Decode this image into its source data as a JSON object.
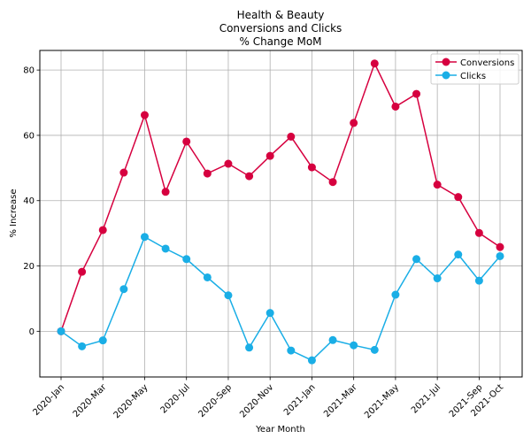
{
  "chart_data": {
    "type": "line",
    "title_lines": [
      "Health & Beauty",
      "Conversions and Clicks",
      "% Change MoM"
    ],
    "xlabel": "Year Month",
    "ylabel": "% Increase",
    "x": [
      "2020-Jan",
      "2020-Feb",
      "2020-Mar",
      "2020-Apr",
      "2020-May",
      "2020-Jun",
      "2020-Jul",
      "2020-Aug",
      "2020-Sep",
      "2020-Oct",
      "2020-Nov",
      "2020-Dec",
      "2021-Jan",
      "2021-Feb",
      "2021-Mar",
      "2021-Apr",
      "2021-May",
      "2021-Jun",
      "2021-Jul",
      "2021-Aug",
      "2021-Sep",
      "2021-Oct"
    ],
    "xtick_labels": [
      "2020-Jan",
      "2020-Mar",
      "2020-May",
      "2020-Jul",
      "2020-Sep",
      "2020-Nov",
      "2021-Jan",
      "2021-Mar",
      "2021-May",
      "2021-Jul",
      "2021-Sep",
      "2021-Oct"
    ],
    "yticks": [
      0,
      20,
      40,
      60,
      80
    ],
    "ylim": [
      -14,
      86
    ],
    "grid": true,
    "legend_position": "top-right",
    "series": [
      {
        "name": "Conversions",
        "color": "#d6003f",
        "values": [
          0,
          18.2,
          31.0,
          48.6,
          66.2,
          42.7,
          58.1,
          48.3,
          51.3,
          47.5,
          53.7,
          59.6,
          50.2,
          45.7,
          63.8,
          82.0,
          68.8,
          72.7,
          44.9,
          41.1,
          30.1,
          25.8
        ]
      },
      {
        "name": "Clicks",
        "color": "#1aaee6",
        "values": [
          0,
          -4.6,
          -2.8,
          12.9,
          28.9,
          25.3,
          22.1,
          16.5,
          11.0,
          -5.0,
          5.6,
          -5.9,
          -8.9,
          -2.7,
          -4.3,
          -5.7,
          11.2,
          22.1,
          16.2,
          23.5,
          15.5,
          23.0
        ]
      }
    ]
  }
}
